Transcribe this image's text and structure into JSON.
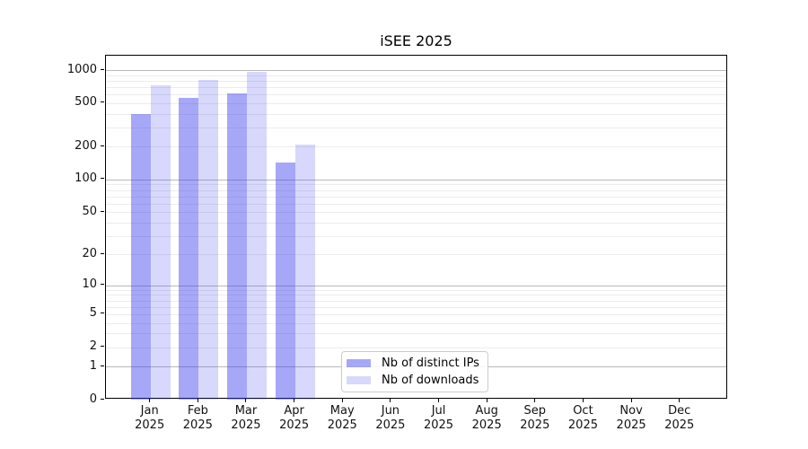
{
  "chart_data": {
    "type": "bar",
    "title": "iSEE 2025",
    "categories": [
      "Jan 2025",
      "Feb 2025",
      "Mar 2025",
      "Apr 2025",
      "May 2025",
      "Jun 2025",
      "Jul 2025",
      "Aug 2025",
      "Sep 2025",
      "Oct 2025",
      "Nov 2025",
      "Dec 2025"
    ],
    "series": [
      {
        "name": "Nb of distinct IPs",
        "color": "rgba(60,60,240,0.45)",
        "values": [
          400,
          557,
          612,
          142,
          0,
          0,
          0,
          0,
          0,
          0,
          0,
          0
        ]
      },
      {
        "name": "Nb of downloads",
        "color": "rgba(60,60,240,0.2)",
        "values": [
          732,
          820,
          960,
          210,
          0,
          0,
          0,
          0,
          0,
          0,
          0,
          0
        ]
      }
    ],
    "yscale": "log(x+1)",
    "yticks": [
      0,
      1,
      2,
      5,
      10,
      20,
      50,
      100,
      200,
      500,
      1000
    ],
    "ylim": [
      0,
      1355
    ],
    "grid": "horizontal major+minor",
    "major_grid_values": [
      1,
      10,
      100,
      1000
    ],
    "minor_grid_values": [
      2,
      3,
      4,
      5,
      6,
      7,
      8,
      9,
      20,
      30,
      40,
      50,
      60,
      70,
      80,
      90,
      200,
      300,
      400,
      500,
      600,
      700,
      800,
      900
    ],
    "legend": {
      "position": "lower-center-inside",
      "entries": [
        "Nb of distinct IPs",
        "Nb of downloads"
      ]
    },
    "colors": {
      "bar_dark": "rgba(60,60,240,0.45)",
      "bar_light": "rgba(60,60,240,0.2)",
      "major_grid": "#b9b9b9",
      "minor_grid": "#ececec",
      "spine": "#000000"
    }
  }
}
